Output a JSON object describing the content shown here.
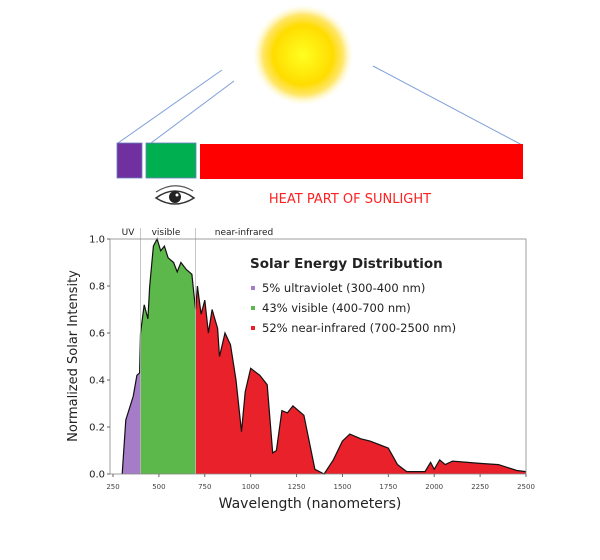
{
  "diagram": {
    "heat_label": "HEAT PART OF SUNLIGHT",
    "bar_colors": {
      "uv": "#7030a0",
      "visible": "#00b050",
      "infrared": "#ff0000"
    },
    "ray_color": "#7f9fd8",
    "sun_color": "#ffe000",
    "icons": [
      "sun-icon",
      "eye-icon"
    ]
  },
  "chart_data": {
    "type": "area",
    "title": "Solar Energy Distribution",
    "xlabel": "Wavelength (nanometers)",
    "ylabel": "Normalized Solar Intensity",
    "xlim": [
      250,
      2500
    ],
    "ylim": [
      0,
      1.0
    ],
    "xticks": [
      250,
      500,
      750,
      1000,
      1250,
      1500,
      1750,
      2000,
      2250,
      2500
    ],
    "yticks": [
      "0.0",
      "0.2",
      "0.4",
      "0.6",
      "0.8",
      "1.0"
    ],
    "region_labels": [
      "UV",
      "visible",
      "near-infrared"
    ],
    "legend": [
      {
        "label": "5% ultraviolet (300-400 nm)",
        "color": "#a47cc8"
      },
      {
        "label": "43% visible (400-700 nm)",
        "color": "#5cb84a"
      },
      {
        "label": "52% near-infrared (700-2500 nm)",
        "color": "#e8212b"
      }
    ],
    "legend_position": "top-right",
    "regions": [
      {
        "name": "ultraviolet",
        "from": 300,
        "to": 400,
        "color": "#a47cc8"
      },
      {
        "name": "visible",
        "from": 400,
        "to": 700,
        "color": "#5cb84a"
      },
      {
        "name": "near-infrared",
        "from": 700,
        "to": 2500,
        "color": "#e8212b"
      }
    ],
    "x": [
      300,
      320,
      340,
      360,
      380,
      395,
      400,
      420,
      440,
      450,
      470,
      490,
      510,
      530,
      550,
      580,
      600,
      620,
      650,
      680,
      690,
      700,
      710,
      730,
      750,
      770,
      790,
      820,
      830,
      860,
      890,
      920,
      950,
      970,
      1000,
      1050,
      1090,
      1120,
      1140,
      1170,
      1200,
      1230,
      1290,
      1350,
      1400,
      1450,
      1500,
      1540,
      1600,
      1650,
      1750,
      1800,
      1850,
      1950,
      1980,
      2000,
      2030,
      2060,
      2100,
      2250,
      2350,
      2450,
      2500
    ],
    "y": [
      0,
      0.23,
      0.28,
      0.33,
      0.42,
      0.43,
      0.6,
      0.72,
      0.66,
      0.8,
      0.97,
      1.0,
      0.95,
      0.97,
      0.92,
      0.9,
      0.86,
      0.9,
      0.87,
      0.85,
      0.77,
      0.7,
      0.8,
      0.68,
      0.74,
      0.6,
      0.7,
      0.62,
      0.5,
      0.6,
      0.55,
      0.4,
      0.18,
      0.35,
      0.45,
      0.42,
      0.38,
      0.09,
      0.1,
      0.27,
      0.26,
      0.29,
      0.25,
      0.02,
      0,
      0.06,
      0.14,
      0.17,
      0.15,
      0.14,
      0.11,
      0.04,
      0.01,
      0.01,
      0.05,
      0.02,
      0.06,
      0.04,
      0.055,
      0.045,
      0.04,
      0.015,
      0.01
    ]
  }
}
